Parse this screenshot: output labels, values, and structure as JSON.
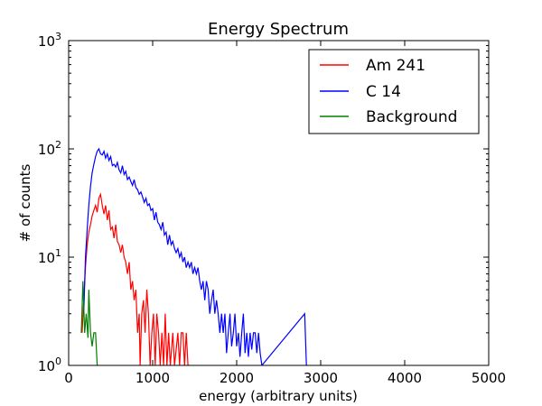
{
  "chart_data": {
    "type": "line",
    "title": "Energy Spectrum",
    "xlabel": "energy (arbitrary units)",
    "ylabel": "# of counts",
    "xlim": [
      0,
      5000
    ],
    "ylim": [
      1,
      1000
    ],
    "yscale": "log",
    "x_ticks": [
      0,
      1000,
      2000,
      3000,
      4000,
      5000
    ],
    "x_tick_labels": [
      "0",
      "1000",
      "2000",
      "3000",
      "4000",
      "5000"
    ],
    "y_ticks": [
      1,
      10,
      100,
      1000
    ],
    "y_tick_labels": [
      {
        "base": "10",
        "exp": "0"
      },
      {
        "base": "10",
        "exp": "1"
      },
      {
        "base": "10",
        "exp": "2"
      },
      {
        "base": "10",
        "exp": "3"
      }
    ],
    "grid": false,
    "legend_position": "top-right",
    "series": [
      {
        "name": "Am 241",
        "color": "#ff0000",
        "points": [
          [
            160,
            2
          ],
          [
            180,
            4
          ],
          [
            200,
            8
          ],
          [
            220,
            13
          ],
          [
            240,
            17
          ],
          [
            260,
            20
          ],
          [
            280,
            24
          ],
          [
            300,
            27
          ],
          [
            320,
            30
          ],
          [
            340,
            26
          ],
          [
            360,
            35
          ],
          [
            380,
            38
          ],
          [
            400,
            30
          ],
          [
            420,
            25
          ],
          [
            440,
            30
          ],
          [
            460,
            22
          ],
          [
            480,
            27
          ],
          [
            500,
            18
          ],
          [
            520,
            19
          ],
          [
            540,
            15
          ],
          [
            560,
            20
          ],
          [
            580,
            14
          ],
          [
            600,
            13
          ],
          [
            620,
            11
          ],
          [
            640,
            13
          ],
          [
            660,
            10
          ],
          [
            680,
            9
          ],
          [
            700,
            7
          ],
          [
            720,
            9
          ],
          [
            740,
            5
          ],
          [
            760,
            6
          ],
          [
            780,
            4
          ],
          [
            800,
            5
          ],
          [
            820,
            2
          ],
          [
            840,
            3
          ],
          [
            850,
            1
          ],
          [
            870,
            3
          ],
          [
            890,
            4
          ],
          [
            910,
            2
          ],
          [
            930,
            5
          ],
          [
            950,
            3
          ],
          [
            970,
            1
          ],
          [
            990,
            2
          ],
          [
            1010,
            3
          ],
          [
            1030,
            1
          ],
          [
            1050,
            3
          ],
          [
            1070,
            2
          ],
          [
            1090,
            1
          ],
          [
            1110,
            2
          ],
          [
            1130,
            1
          ],
          [
            1150,
            3
          ],
          [
            1170,
            1
          ],
          [
            1190,
            2
          ],
          [
            1210,
            1
          ],
          [
            1240,
            2
          ],
          [
            1260,
            1
          ],
          [
            1300,
            2
          ],
          [
            1320,
            1
          ],
          [
            1340,
            2
          ],
          [
            1360,
            2
          ],
          [
            1380,
            1
          ],
          [
            1400,
            2
          ],
          [
            1420,
            1
          ],
          [
            1440,
            1
          ]
        ]
      },
      {
        "name": "C 14",
        "color": "#0000ff",
        "points": [
          [
            180,
            3
          ],
          [
            200,
            10
          ],
          [
            220,
            18
          ],
          [
            240,
            30
          ],
          [
            260,
            45
          ],
          [
            280,
            60
          ],
          [
            300,
            72
          ],
          [
            320,
            85
          ],
          [
            340,
            95
          ],
          [
            360,
            100
          ],
          [
            380,
            90
          ],
          [
            400,
            88
          ],
          [
            420,
            95
          ],
          [
            440,
            82
          ],
          [
            460,
            90
          ],
          [
            480,
            78
          ],
          [
            500,
            85
          ],
          [
            520,
            70
          ],
          [
            540,
            72
          ],
          [
            560,
            68
          ],
          [
            580,
            75
          ],
          [
            600,
            64
          ],
          [
            620,
            60
          ],
          [
            640,
            70
          ],
          [
            660,
            58
          ],
          [
            680,
            62
          ],
          [
            700,
            52
          ],
          [
            720,
            55
          ],
          [
            740,
            50
          ],
          [
            760,
            46
          ],
          [
            780,
            52
          ],
          [
            800,
            44
          ],
          [
            820,
            42
          ],
          [
            840,
            38
          ],
          [
            860,
            40
          ],
          [
            880,
            36
          ],
          [
            900,
            32
          ],
          [
            920,
            35
          ],
          [
            940,
            30
          ],
          [
            960,
            31
          ],
          [
            980,
            27
          ],
          [
            1000,
            28
          ],
          [
            1020,
            22
          ],
          [
            1040,
            26
          ],
          [
            1060,
            21
          ],
          [
            1080,
            20
          ],
          [
            1100,
            18
          ],
          [
            1120,
            21
          ],
          [
            1140,
            16
          ],
          [
            1160,
            17
          ],
          [
            1180,
            13
          ],
          [
            1200,
            16
          ],
          [
            1220,
            13
          ],
          [
            1240,
            14
          ],
          [
            1260,
            12
          ],
          [
            1280,
            11
          ],
          [
            1300,
            12
          ],
          [
            1320,
            10
          ],
          [
            1340,
            11
          ],
          [
            1360,
            9
          ],
          [
            1380,
            10
          ],
          [
            1400,
            8
          ],
          [
            1420,
            9
          ],
          [
            1440,
            8
          ],
          [
            1460,
            9
          ],
          [
            1480,
            7
          ],
          [
            1500,
            8
          ],
          [
            1520,
            7
          ],
          [
            1540,
            8
          ],
          [
            1560,
            6
          ],
          [
            1580,
            5
          ],
          [
            1600,
            6
          ],
          [
            1620,
            4
          ],
          [
            1640,
            6
          ],
          [
            1660,
            5
          ],
          [
            1680,
            3
          ],
          [
            1700,
            4
          ],
          [
            1720,
            5
          ],
          [
            1740,
            3
          ],
          [
            1760,
            4
          ],
          [
            1780,
            3
          ],
          [
            1800,
            2
          ],
          [
            1820,
            3
          ],
          [
            1840,
            2
          ],
          [
            1860,
            3
          ],
          [
            1880,
            1.3
          ],
          [
            1900,
            2
          ],
          [
            1920,
            3
          ],
          [
            1940,
            1.5
          ],
          [
            1960,
            2
          ],
          [
            1980,
            3
          ],
          [
            2000,
            1.5
          ],
          [
            2020,
            2
          ],
          [
            2040,
            1.2
          ],
          [
            2060,
            2
          ],
          [
            2080,
            3
          ],
          [
            2100,
            1.3
          ],
          [
            2120,
            2
          ],
          [
            2140,
            1.2
          ],
          [
            2160,
            2
          ],
          [
            2180,
            1.4
          ],
          [
            2200,
            2
          ],
          [
            2220,
            2
          ],
          [
            2240,
            1.3
          ],
          [
            2260,
            2
          ],
          [
            2280,
            1.3
          ],
          [
            2300,
            1
          ],
          [
            2810,
            3
          ],
          [
            2830,
            1
          ]
        ]
      },
      {
        "name": "Background",
        "color": "#008000",
        "points": [
          [
            150,
            2
          ],
          [
            170,
            6
          ],
          [
            190,
            2
          ],
          [
            210,
            3
          ],
          [
            230,
            1.8
          ],
          [
            240,
            5
          ],
          [
            260,
            2
          ],
          [
            280,
            1.5
          ],
          [
            300,
            2
          ],
          [
            320,
            2
          ],
          [
            340,
            1
          ]
        ]
      }
    ]
  }
}
